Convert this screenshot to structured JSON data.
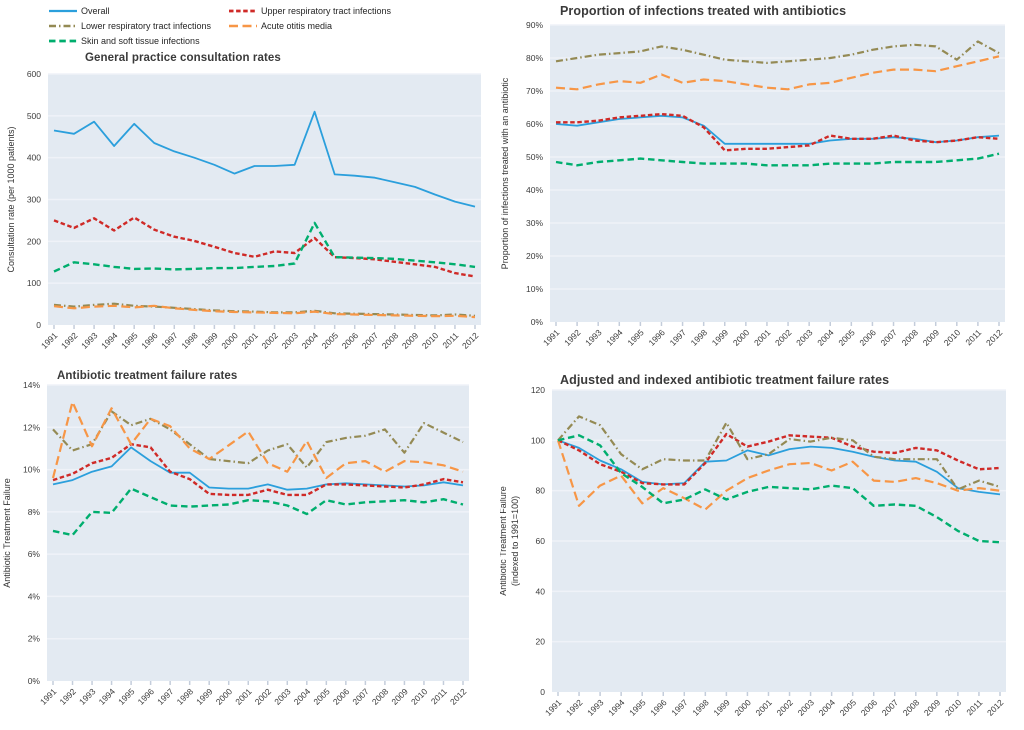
{
  "colors": {
    "plot_bg": "#e3eaf2",
    "gridline": "#eff2f8",
    "tick_mark": "#c4cddb",
    "title_text": "#3a3a3a",
    "overall_blue": "#2b9fdc",
    "urti_red": "#cf2a27",
    "lrti_olive": "#948a54",
    "aom_orange": "#f79646",
    "ssti_green": "#00ae6e"
  },
  "years": [
    "1991",
    "1992",
    "1993",
    "1994",
    "1995",
    "1996",
    "1997",
    "1998",
    "1999",
    "2000",
    "2001",
    "2002",
    "2003",
    "2004",
    "2005",
    "2006",
    "2007",
    "2008",
    "2009",
    "2010",
    "2011",
    "2012"
  ],
  "legend": {
    "items": [
      {
        "label": "Overall",
        "series": "overall"
      },
      {
        "label": "Upper respiratory tract infections",
        "series": "urti"
      },
      {
        "label": "Lower respiratory tract infections",
        "series": "lrti"
      },
      {
        "label": "Acute otitis media",
        "series": "aom"
      },
      {
        "label": "Skin and soft tissue infections",
        "series": "ssti"
      }
    ]
  },
  "series_styles": {
    "overall": {
      "color": "#2b9fdc",
      "dash": "",
      "width": 1.8
    },
    "urti": {
      "color": "#cf2a27",
      "dash": "4.5,2.6",
      "width": 2.4
    },
    "lrti": {
      "color": "#948a54",
      "dash": "7,3,1.5,3",
      "width": 2.2
    },
    "aom": {
      "color": "#f79646",
      "dash": "9,4.5",
      "width": 2.2
    },
    "ssti": {
      "color": "#00ae6e",
      "dash": "6.5,3.8",
      "width": 2.4
    }
  },
  "chart_data": [
    {
      "type": "line",
      "title": "General practice consultation rates",
      "ylabel": "Consultation rate (per 1000 patients)",
      "ylabel_lines": [
        "Consultation rate (per 1000 patients)"
      ],
      "ylim": [
        0,
        600
      ],
      "ytick_step": 100,
      "ytick_suffix": "",
      "grid": true,
      "legend_position": "figure-top-left",
      "series": [
        {
          "name": "Overall",
          "key": "overall",
          "values": [
            465,
            457,
            486,
            428,
            481,
            435,
            415,
            400,
            383,
            362,
            380,
            380,
            383,
            510,
            360,
            357,
            352,
            341,
            330,
            312,
            295,
            283
          ]
        },
        {
          "name": "Upper respiratory tract infections",
          "key": "urti",
          "values": [
            250,
            232,
            255,
            226,
            257,
            228,
            211,
            201,
            187,
            172,
            163,
            176,
            172,
            208,
            162,
            160,
            157,
            151,
            145,
            139,
            124,
            116
          ]
        },
        {
          "name": "Lower respiratory tract infections",
          "key": "lrti",
          "values": [
            48,
            44,
            48,
            51,
            46,
            44,
            41,
            38,
            35,
            33,
            32,
            30,
            30,
            34,
            28,
            27,
            26,
            25,
            24,
            23,
            25,
            22
          ]
        },
        {
          "name": "Acute otitis media",
          "key": "aom",
          "values": [
            45,
            40,
            44,
            46,
            42,
            46,
            40,
            36,
            33,
            31,
            30,
            29,
            28,
            32,
            26,
            25,
            24,
            23,
            22,
            21,
            22,
            19
          ]
        },
        {
          "name": "Skin and soft tissue infections",
          "key": "ssti",
          "values": [
            128,
            150,
            145,
            139,
            134,
            135,
            133,
            134,
            136,
            136,
            139,
            141,
            147,
            244,
            162,
            161,
            160,
            158,
            154,
            150,
            145,
            139
          ]
        }
      ]
    },
    {
      "type": "line",
      "title": "Proportion of infections treated with antibiotics",
      "ylabel": "Proportion of infections treated with an antibiotic",
      "ylabel_lines": [
        "Proportion of infections treated with an antibiotic"
      ],
      "ylim": [
        0,
        90
      ],
      "ytick_step": 10,
      "ytick_suffix": "%",
      "grid": true,
      "series": [
        {
          "name": "Overall",
          "key": "overall",
          "values": [
            60,
            59.5,
            60.5,
            61.5,
            62,
            62.5,
            62,
            59.5,
            54,
            54,
            54,
            54,
            54,
            55,
            55.5,
            55.5,
            56,
            55.5,
            54.5,
            55,
            56,
            56.5
          ]
        },
        {
          "name": "Upper respiratory tract infections",
          "key": "urti",
          "values": [
            60.5,
            60.5,
            61,
            62,
            62.5,
            63,
            62.5,
            59,
            52,
            52.5,
            52.5,
            53,
            53.5,
            56.5,
            55.5,
            55.5,
            56.5,
            55,
            54.5,
            55,
            56,
            55.5
          ]
        },
        {
          "name": "Lower respiratory tract infections",
          "key": "lrti",
          "values": [
            79,
            80,
            81,
            81.5,
            82,
            83.5,
            82.5,
            81,
            79.5,
            79,
            78.5,
            79,
            79.5,
            80,
            81,
            82.5,
            83.5,
            84,
            83.5,
            79.5,
            85,
            81.5
          ]
        },
        {
          "name": "Acute otitis media",
          "key": "aom",
          "values": [
            71,
            70.5,
            72,
            73,
            72.5,
            75,
            72.5,
            73.5,
            73,
            72,
            71,
            70.5,
            72,
            72.5,
            74,
            75.5,
            76.5,
            76.5,
            76,
            77.5,
            79,
            80.5
          ]
        },
        {
          "name": "Skin and soft tissue infections",
          "key": "ssti",
          "values": [
            48.5,
            47.5,
            48.5,
            49,
            49.5,
            49,
            48.5,
            48,
            48,
            48,
            47.5,
            47.5,
            47.5,
            48,
            48,
            48,
            48.5,
            48.5,
            48.5,
            49,
            49.5,
            51
          ]
        }
      ]
    },
    {
      "type": "line",
      "title": "Antibiotic treatment failure rates",
      "ylabel": "Antibiotic Treatment Failure",
      "ylabel_lines": [
        "Antibiotic Treatment Failure"
      ],
      "ylim": [
        0,
        14
      ],
      "ytick_step": 2,
      "ytick_suffix": "%",
      "grid": true,
      "series": [
        {
          "name": "Overall",
          "key": "overall",
          "values": [
            9.3,
            9.5,
            9.9,
            10.15,
            11.05,
            10.4,
            9.85,
            9.85,
            9.15,
            9.1,
            9.1,
            9.3,
            9.05,
            9.1,
            9.3,
            9.35,
            9.3,
            9.25,
            9.2,
            9.25,
            9.4,
            9.25
          ]
        },
        {
          "name": "Upper respiratory tract infections",
          "key": "urti",
          "values": [
            9.5,
            9.8,
            10.3,
            10.55,
            11.2,
            11.05,
            9.9,
            9.55,
            8.85,
            8.8,
            8.8,
            9.05,
            8.8,
            8.8,
            9.3,
            9.3,
            9.25,
            9.2,
            9.15,
            9.3,
            9.55,
            9.4
          ]
        },
        {
          "name": "Lower respiratory tract infections",
          "key": "lrti",
          "values": [
            11.9,
            10.9,
            11.2,
            12.75,
            12.1,
            12.4,
            11.9,
            11.2,
            10.5,
            10.4,
            10.3,
            10.9,
            11.2,
            10.1,
            11.3,
            11.5,
            11.6,
            11.9,
            10.8,
            12.2,
            11.75,
            11.3
          ]
        },
        {
          "name": "Acute otitis media",
          "key": "aom",
          "values": [
            9.6,
            13.2,
            11.1,
            12.9,
            11.2,
            12.4,
            12.05,
            11.0,
            10.5,
            11.15,
            11.8,
            10.3,
            9.9,
            11.35,
            9.6,
            10.3,
            10.4,
            9.9,
            10.4,
            10.35,
            10.2,
            9.9
          ]
        },
        {
          "name": "Skin and soft tissue infections",
          "key": "ssti",
          "values": [
            7.1,
            6.9,
            8.0,
            7.95,
            9.1,
            8.7,
            8.3,
            8.25,
            8.3,
            8.35,
            8.55,
            8.5,
            8.3,
            7.9,
            8.55,
            8.35,
            8.45,
            8.5,
            8.55,
            8.45,
            8.6,
            8.35
          ]
        }
      ]
    },
    {
      "type": "line",
      "title": "Adjusted and indexed antibiotic treatment failure rates",
      "ylabel": "Antibiotic Treatment Failure (indexed to 1991=100)",
      "ylabel_lines": [
        "Antibiotic Treatment Failure",
        "(indexed to 1991=100)"
      ],
      "ylim": [
        0,
        120
      ],
      "ytick_step": 20,
      "ytick_suffix": "",
      "grid": true,
      "series": [
        {
          "name": "Overall",
          "key": "overall",
          "values": [
            100,
            97,
            92,
            88.5,
            83.5,
            82.5,
            83,
            91.5,
            92,
            96,
            94,
            96.5,
            97.5,
            97,
            95.5,
            93.5,
            92,
            91.5,
            87.5,
            81,
            79.5,
            78.5
          ]
        },
        {
          "name": "Upper respiratory tract infections",
          "key": "urti",
          "values": [
            100,
            96,
            90.5,
            87.5,
            83,
            82.5,
            82.5,
            91,
            102.5,
            97.5,
            99.5,
            102,
            101.5,
            101,
            97.5,
            95.5,
            95,
            97,
            96,
            92,
            88.5,
            89
          ]
        },
        {
          "name": "Lower respiratory tract infections",
          "key": "lrti",
          "values": [
            100,
            109.5,
            106,
            94.5,
            88.5,
            92.5,
            92,
            92,
            107,
            92.5,
            94.5,
            100.5,
            99.5,
            101,
            100,
            93.5,
            92.5,
            92.5,
            92.5,
            80.5,
            84,
            81.5
          ]
        },
        {
          "name": "Acute otitis media",
          "key": "aom",
          "values": [
            100,
            74,
            82,
            86,
            75,
            81,
            77,
            72.5,
            80,
            85,
            88,
            90.5,
            91,
            88,
            91.5,
            84,
            83.5,
            85,
            83,
            80,
            81,
            80
          ]
        },
        {
          "name": "Skin and soft tissue infections",
          "key": "ssti",
          "values": [
            100,
            102,
            98,
            87,
            81.5,
            75,
            76.5,
            80.5,
            76.5,
            79.5,
            81.5,
            81,
            80.5,
            82,
            81,
            74,
            74.5,
            74,
            69.5,
            64,
            60,
            59.5
          ]
        }
      ]
    }
  ]
}
